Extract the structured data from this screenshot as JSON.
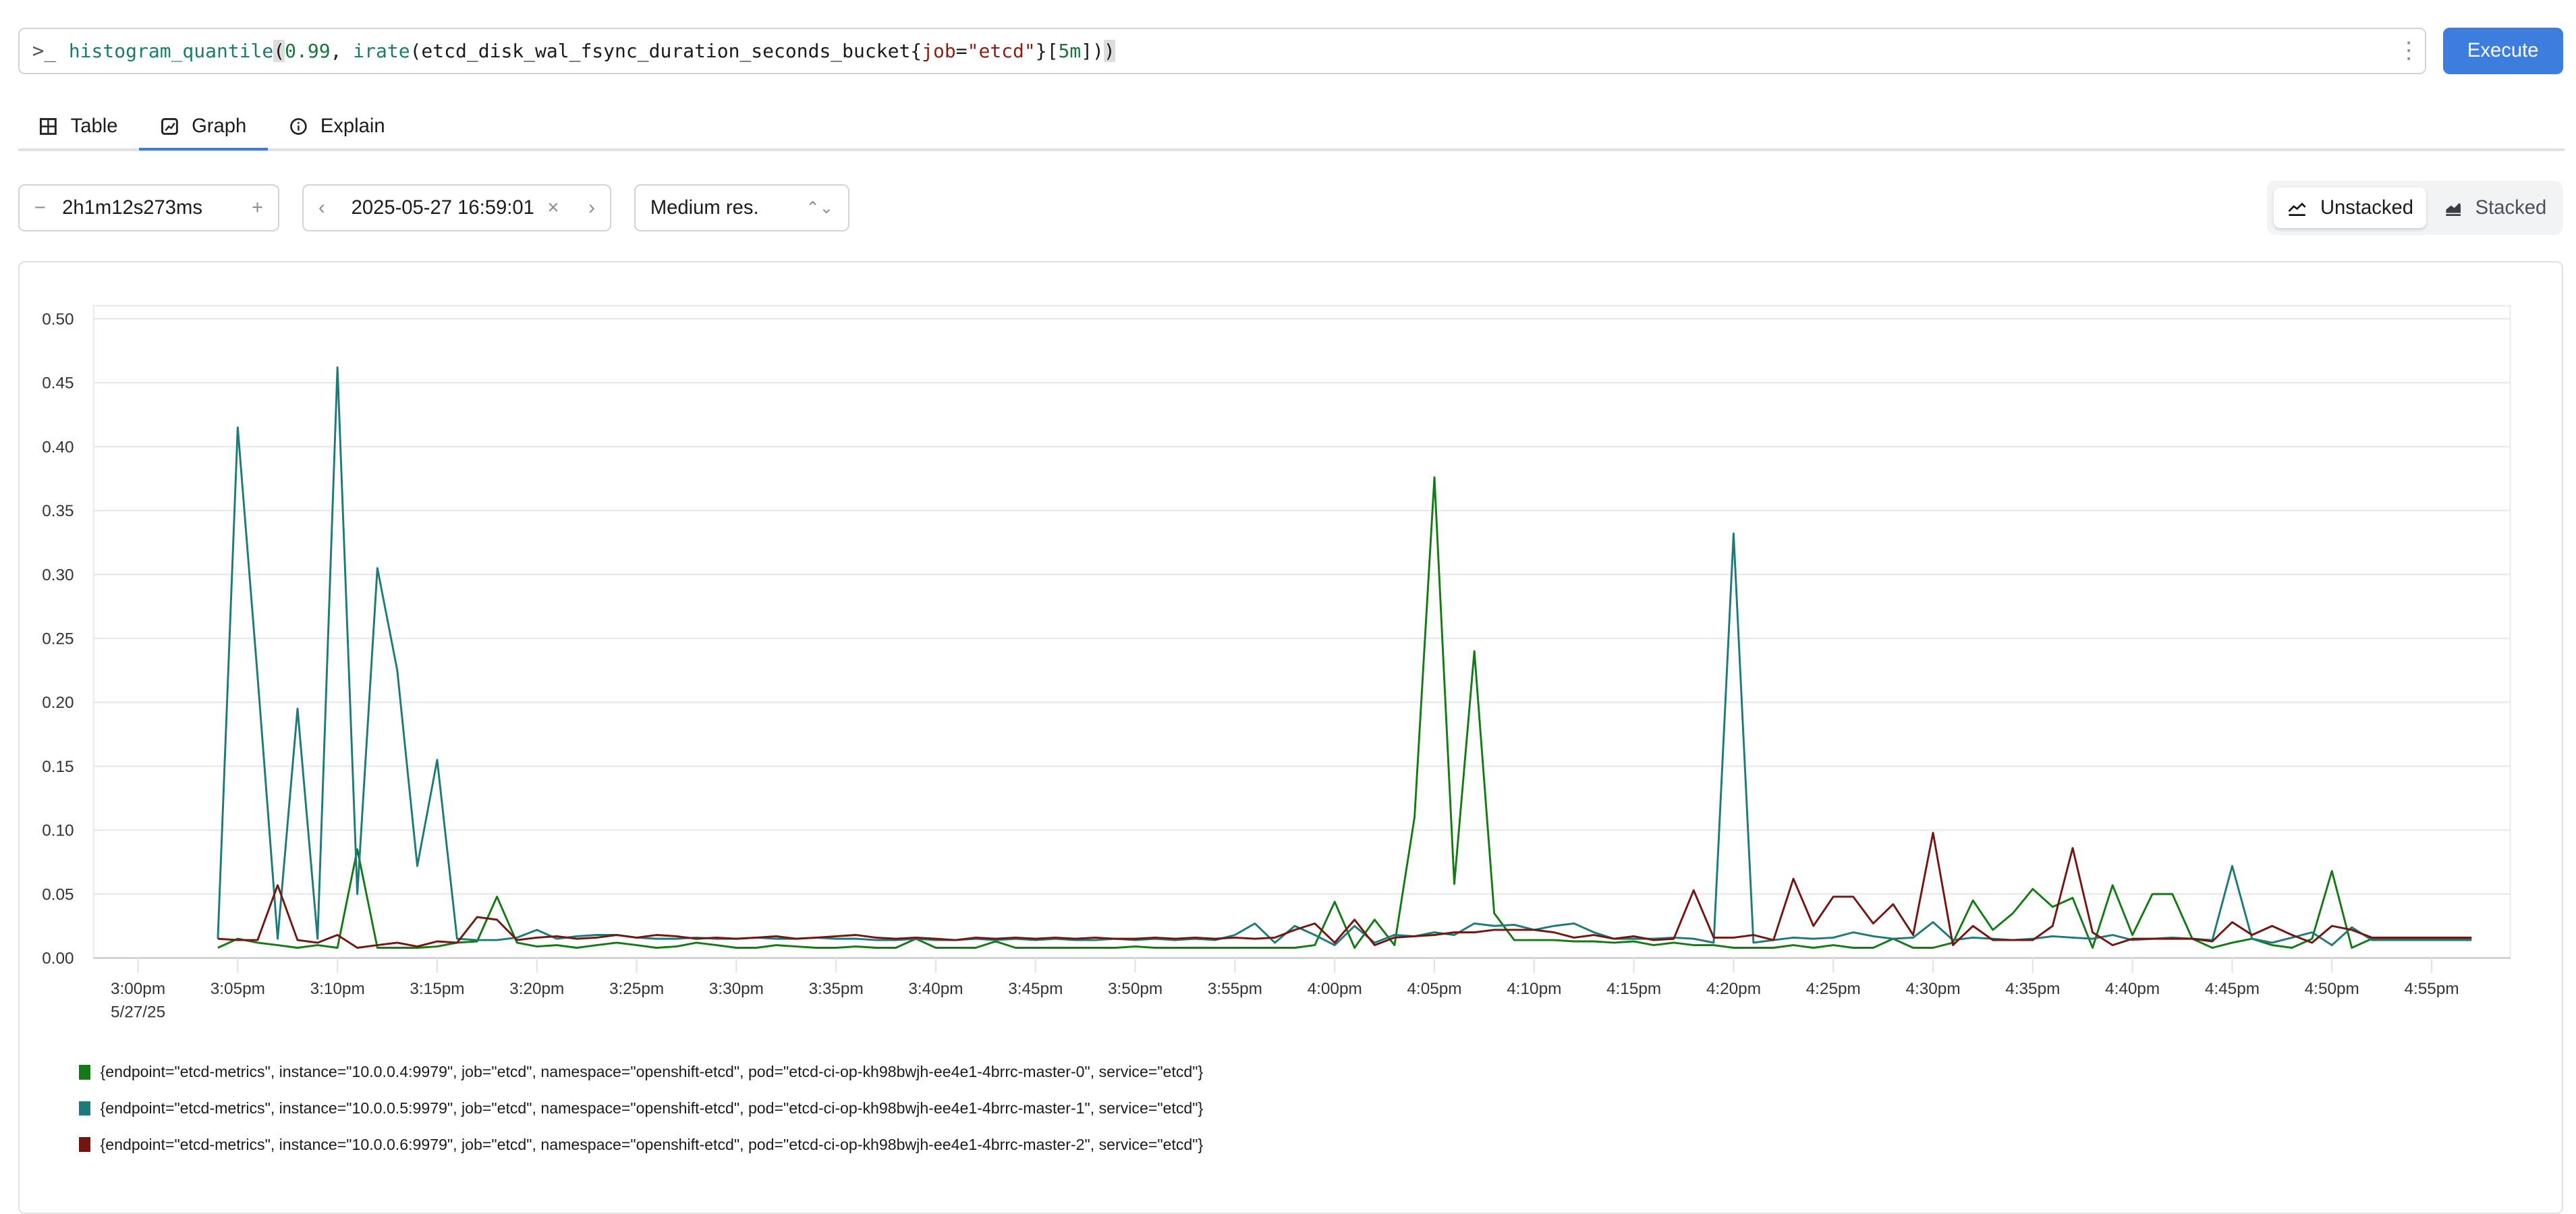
{
  "query": {
    "prompt_icon": "terminal-prompt-icon",
    "tokens": [
      {
        "text": "histogram_quantile",
        "kind": "fn"
      },
      {
        "text": "(",
        "kind": "br"
      },
      {
        "text": "0.99",
        "kind": "num"
      },
      {
        "text": ", ",
        "kind": "met"
      },
      {
        "text": "irate",
        "kind": "fn"
      },
      {
        "text": "(etcd_disk_wal_fsync_duration_seconds_bucket{",
        "kind": "met"
      },
      {
        "text": "job",
        "kind": "lbl"
      },
      {
        "text": "=",
        "kind": "met"
      },
      {
        "text": "\"etcd\"",
        "kind": "str"
      },
      {
        "text": "}[",
        "kind": "met"
      },
      {
        "text": "5m",
        "kind": "num"
      },
      {
        "text": "])",
        "kind": "met"
      },
      {
        "text": ")",
        "kind": "br"
      }
    ],
    "menu_icon": "kebab-menu-icon",
    "execute_label": "Execute"
  },
  "tabs": [
    {
      "label": "Table",
      "icon": "table-icon",
      "active": false
    },
    {
      "label": "Graph",
      "icon": "graph-icon",
      "active": true
    },
    {
      "label": "Explain",
      "icon": "info-circle-icon",
      "active": false
    }
  ],
  "controls": {
    "range": {
      "minus": "−",
      "value": "2h1m12s273ms",
      "plus": "+"
    },
    "end_time": {
      "prev": "‹",
      "value": "2025-05-27 16:59:01",
      "clear": "×",
      "next": "›"
    },
    "resolution": {
      "value": "Medium res.",
      "chevron": "⌃"
    },
    "stack_toggle": {
      "unstacked": "Unstacked",
      "stacked": "Stacked",
      "selected": "Unstacked"
    }
  },
  "colors": {
    "accent": "#3c7dde",
    "series": [
      "#137a14",
      "#1d7a7a",
      "#741610"
    ]
  },
  "chart_data": {
    "type": "line",
    "ylim": [
      0,
      0.5
    ],
    "y_ticks": [
      "0.00",
      "0.05",
      "0.10",
      "0.15",
      "0.20",
      "0.25",
      "0.30",
      "0.35",
      "0.40",
      "0.45",
      "0.50"
    ],
    "x_ticks": [
      "3:00pm",
      "3:05pm",
      "3:10pm",
      "3:15pm",
      "3:20pm",
      "3:25pm",
      "3:30pm",
      "3:35pm",
      "3:40pm",
      "3:45pm",
      "3:50pm",
      "3:55pm",
      "4:00pm",
      "4:05pm",
      "4:10pm",
      "4:15pm",
      "4:20pm",
      "4:25pm",
      "4:30pm",
      "4:35pm",
      "4:40pm",
      "4:45pm",
      "4:50pm",
      "4:55pm"
    ],
    "x_date_label": "5/27/25",
    "grid": true,
    "legend_position": "bottom",
    "x": [
      "15:04",
      "15:05",
      "15:06",
      "15:07",
      "15:08",
      "15:09",
      "15:10",
      "15:11",
      "15:12",
      "15:13",
      "15:14",
      "15:15",
      "15:16",
      "15:17",
      "15:18",
      "15:19",
      "15:20",
      "15:21",
      "15:22",
      "15:23",
      "15:24",
      "15:25",
      "15:26",
      "15:27",
      "15:28",
      "15:29",
      "15:30",
      "15:31",
      "15:32",
      "15:33",
      "15:34",
      "15:35",
      "15:36",
      "15:37",
      "15:38",
      "15:39",
      "15:40",
      "15:41",
      "15:42",
      "15:43",
      "15:44",
      "15:45",
      "15:46",
      "15:47",
      "15:48",
      "15:49",
      "15:50",
      "15:51",
      "15:52",
      "15:53",
      "15:54",
      "15:55",
      "15:56",
      "15:57",
      "15:58",
      "15:59",
      "16:00",
      "16:01",
      "16:02",
      "16:03",
      "16:04",
      "16:05",
      "16:06",
      "16:07",
      "16:08",
      "16:09",
      "16:10",
      "16:11",
      "16:12",
      "16:13",
      "16:14",
      "16:15",
      "16:16",
      "16:17",
      "16:18",
      "16:19",
      "16:20",
      "16:21",
      "16:22",
      "16:23",
      "16:24",
      "16:25",
      "16:26",
      "16:27",
      "16:28",
      "16:29",
      "16:30",
      "16:31",
      "16:32",
      "16:33",
      "16:34",
      "16:35",
      "16:36",
      "16:37",
      "16:38",
      "16:39",
      "16:40",
      "16:41",
      "16:42",
      "16:43",
      "16:44",
      "16:45",
      "16:46",
      "16:47",
      "16:48",
      "16:49",
      "16:50",
      "16:51",
      "16:52",
      "16:53",
      "16:54",
      "16:55",
      "16:56",
      "16:57"
    ],
    "series": [
      {
        "name": "{endpoint=\"etcd-metrics\", instance=\"10.0.0.4:9979\", job=\"etcd\", namespace=\"openshift-etcd\", pod=\"etcd-ci-op-kh98bwjh-ee4e1-4brrc-master-0\", service=\"etcd\"}",
        "color": "#137a14",
        "values": [
          0.008,
          0.015,
          0.012,
          0.01,
          0.008,
          0.01,
          0.008,
          0.085,
          0.008,
          0.008,
          0.008,
          0.009,
          0.012,
          0.013,
          0.048,
          0.012,
          0.009,
          0.01,
          0.008,
          0.01,
          0.012,
          0.01,
          0.008,
          0.009,
          0.012,
          0.01,
          0.008,
          0.008,
          0.01,
          0.009,
          0.008,
          0.008,
          0.009,
          0.008,
          0.008,
          0.015,
          0.008,
          0.008,
          0.008,
          0.013,
          0.008,
          0.008,
          0.008,
          0.008,
          0.008,
          0.008,
          0.009,
          0.008,
          0.008,
          0.008,
          0.008,
          0.008,
          0.008,
          0.008,
          0.008,
          0.01,
          0.044,
          0.008,
          0.03,
          0.01,
          0.11,
          0.376,
          0.058,
          0.24,
          0.035,
          0.014,
          0.014,
          0.014,
          0.013,
          0.013,
          0.012,
          0.013,
          0.01,
          0.012,
          0.01,
          0.01,
          0.008,
          0.008,
          0.008,
          0.01,
          0.008,
          0.01,
          0.008,
          0.008,
          0.015,
          0.008,
          0.008,
          0.012,
          0.045,
          0.022,
          0.035,
          0.054,
          0.04,
          0.047,
          0.008,
          0.057,
          0.018,
          0.05,
          0.05,
          0.015,
          0.008,
          0.012,
          0.015,
          0.01,
          0.008,
          0.015,
          0.068,
          0.008,
          0.015,
          0.015,
          0.015,
          0.015,
          0.015,
          0.015
        ]
      },
      {
        "name": "{endpoint=\"etcd-metrics\", instance=\"10.0.0.5:9979\", job=\"etcd\", namespace=\"openshift-etcd\", pod=\"etcd-ci-op-kh98bwjh-ee4e1-4brrc-master-1\", service=\"etcd\"}",
        "color": "#1d7a7a",
        "values": [
          0.015,
          0.415,
          0.22,
          0.015,
          0.195,
          0.015,
          0.462,
          0.05,
          0.305,
          0.225,
          0.072,
          0.155,
          0.015,
          0.014,
          0.014,
          0.016,
          0.022,
          0.015,
          0.017,
          0.018,
          0.018,
          0.016,
          0.015,
          0.015,
          0.016,
          0.015,
          0.015,
          0.016,
          0.015,
          0.015,
          0.016,
          0.015,
          0.015,
          0.014,
          0.014,
          0.015,
          0.014,
          0.014,
          0.015,
          0.014,
          0.015,
          0.014,
          0.015,
          0.014,
          0.014,
          0.015,
          0.014,
          0.015,
          0.014,
          0.015,
          0.014,
          0.018,
          0.027,
          0.012,
          0.025,
          0.018,
          0.01,
          0.025,
          0.012,
          0.018,
          0.017,
          0.02,
          0.018,
          0.027,
          0.025,
          0.026,
          0.022,
          0.025,
          0.027,
          0.02,
          0.015,
          0.015,
          0.015,
          0.016,
          0.015,
          0.012,
          0.332,
          0.012,
          0.014,
          0.016,
          0.015,
          0.016,
          0.02,
          0.017,
          0.015,
          0.016,
          0.028,
          0.014,
          0.016,
          0.015,
          0.014,
          0.015,
          0.017,
          0.016,
          0.015,
          0.018,
          0.014,
          0.015,
          0.016,
          0.015,
          0.014,
          0.072,
          0.015,
          0.012,
          0.016,
          0.02,
          0.01,
          0.024,
          0.014,
          0.014,
          0.014,
          0.014,
          0.014,
          0.014
        ]
      },
      {
        "name": "{endpoint=\"etcd-metrics\", instance=\"10.0.0.6:9979\", job=\"etcd\", namespace=\"openshift-etcd\", pod=\"etcd-ci-op-kh98bwjh-ee4e1-4brrc-master-2\", service=\"etcd\"}",
        "color": "#741610",
        "values": [
          0.015,
          0.014,
          0.014,
          0.057,
          0.014,
          0.012,
          0.018,
          0.008,
          0.01,
          0.012,
          0.009,
          0.013,
          0.012,
          0.032,
          0.03,
          0.014,
          0.016,
          0.017,
          0.015,
          0.016,
          0.018,
          0.016,
          0.018,
          0.017,
          0.015,
          0.016,
          0.015,
          0.016,
          0.017,
          0.015,
          0.016,
          0.017,
          0.018,
          0.016,
          0.015,
          0.016,
          0.015,
          0.014,
          0.016,
          0.015,
          0.016,
          0.015,
          0.016,
          0.015,
          0.016,
          0.015,
          0.015,
          0.016,
          0.015,
          0.016,
          0.015,
          0.016,
          0.015,
          0.016,
          0.022,
          0.027,
          0.012,
          0.03,
          0.01,
          0.016,
          0.017,
          0.018,
          0.02,
          0.02,
          0.022,
          0.022,
          0.022,
          0.02,
          0.016,
          0.018,
          0.015,
          0.017,
          0.014,
          0.015,
          0.053,
          0.016,
          0.016,
          0.018,
          0.014,
          0.062,
          0.025,
          0.048,
          0.048,
          0.027,
          0.042,
          0.018,
          0.098,
          0.01,
          0.025,
          0.014,
          0.014,
          0.014,
          0.025,
          0.086,
          0.02,
          0.01,
          0.015,
          0.015,
          0.015,
          0.015,
          0.013,
          0.028,
          0.018,
          0.025,
          0.018,
          0.012,
          0.025,
          0.022,
          0.016,
          0.016,
          0.016,
          0.016,
          0.016,
          0.016
        ]
      }
    ]
  }
}
